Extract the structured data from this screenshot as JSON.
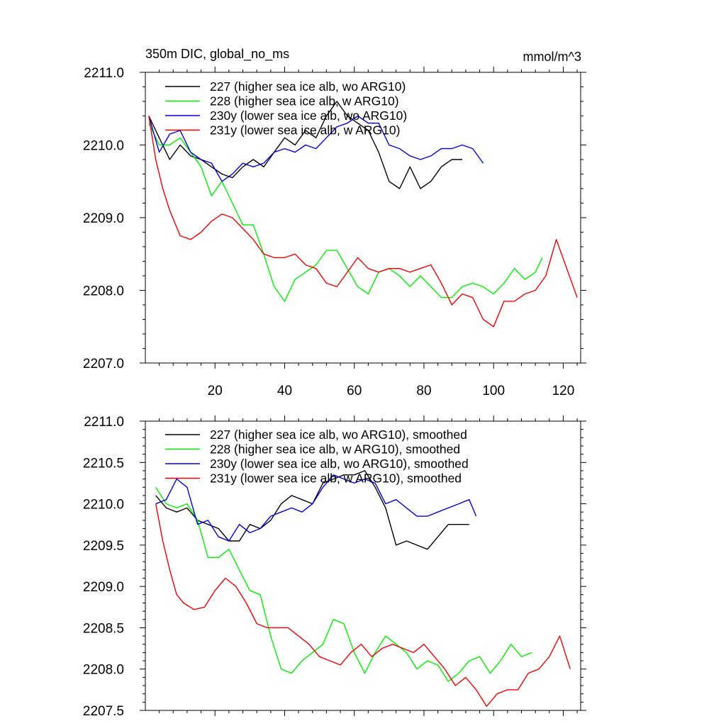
{
  "figure": {
    "title": "350m DIC, global_no_ms",
    "units": "mmol/m^3"
  },
  "chart_data": [
    {
      "type": "line",
      "panel": "top",
      "title": "350m DIC, global_no_ms",
      "units_label": "mmol/m^3",
      "xlabel": "",
      "ylabel": "",
      "xlim": [
        0,
        125
      ],
      "ylim": [
        2207.0,
        2211.0
      ],
      "xticks": [
        20,
        40,
        60,
        80,
        100,
        120
      ],
      "xtick_labels": [
        "20",
        "40",
        "60",
        "80",
        "100",
        "120"
      ],
      "yticks": [
        2207.0,
        2208.0,
        2209.0,
        2210.0,
        2211.0
      ],
      "ytick_labels": [
        "2207.0",
        "2208.0",
        "2209.0",
        "2210.0",
        "2211.0"
      ],
      "grid": false,
      "legend_position": "top-left",
      "series": [
        {
          "name": "227 (higher sea ice alb, wo ARG10)",
          "color": "#000000",
          "x": [
            1,
            4,
            7,
            10,
            13,
            16,
            19,
            22,
            25,
            28,
            31,
            34,
            37,
            40,
            43,
            46,
            49,
            52,
            55,
            58,
            61,
            64,
            67,
            70,
            73,
            76,
            79,
            82,
            85,
            88,
            91
          ],
          "values": [
            2210.4,
            2210.1,
            2209.8,
            2210.0,
            2209.85,
            2209.8,
            2209.7,
            2209.6,
            2209.55,
            2209.7,
            2209.8,
            2209.7,
            2209.9,
            2210.1,
            2210.0,
            2210.2,
            2210.1,
            2210.4,
            2210.6,
            2210.4,
            2210.3,
            2210.2,
            2209.9,
            2209.5,
            2209.4,
            2209.7,
            2209.4,
            2209.5,
            2209.7,
            2209.8,
            2209.8
          ]
        },
        {
          "name": "228 (higher sea ice alb, w ARG10)",
          "color": "#00ee00",
          "x": [
            1,
            4,
            7,
            10,
            13,
            16,
            19,
            22,
            25,
            28,
            31,
            34,
            37,
            40,
            43,
            46,
            49,
            52,
            55,
            58,
            61,
            64,
            67,
            70,
            73,
            76,
            79,
            82,
            85,
            88,
            91,
            94,
            97,
            100,
            103,
            106,
            109,
            112,
            114
          ],
          "values": [
            2210.3,
            2210.0,
            2210.0,
            2210.1,
            2209.9,
            2209.7,
            2209.3,
            2209.5,
            2209.2,
            2208.9,
            2208.9,
            2208.5,
            2208.05,
            2207.85,
            2208.15,
            2208.25,
            2208.35,
            2208.55,
            2208.55,
            2208.3,
            2208.05,
            2207.95,
            2208.25,
            2208.3,
            2208.2,
            2208.05,
            2208.2,
            2208.05,
            2207.9,
            2207.9,
            2208.05,
            2208.1,
            2208.05,
            2207.95,
            2208.1,
            2208.3,
            2208.15,
            2208.25,
            2208.45
          ]
        },
        {
          "name": "230y (lower sea ice alb, wo ARG10)",
          "color": "#0000dd",
          "x": [
            1,
            4,
            7,
            10,
            13,
            16,
            19,
            22,
            25,
            28,
            31,
            34,
            37,
            40,
            43,
            46,
            49,
            52,
            55,
            58,
            61,
            64,
            67,
            70,
            73,
            76,
            79,
            82,
            85,
            88,
            91,
            94,
            97
          ],
          "values": [
            2210.4,
            2209.9,
            2210.15,
            2210.2,
            2209.9,
            2209.8,
            2209.75,
            2209.5,
            2209.6,
            2209.75,
            2209.7,
            2209.75,
            2209.9,
            2209.95,
            2209.9,
            2210.0,
            2209.95,
            2210.1,
            2210.25,
            2210.3,
            2210.4,
            2210.3,
            2210.3,
            2210.0,
            2209.95,
            2209.85,
            2209.8,
            2209.85,
            2209.95,
            2209.95,
            2210.0,
            2209.95,
            2209.75
          ]
        },
        {
          "name": "231y (lower sea ice alb, w ARG10)",
          "color": "#ee0000",
          "x": [
            1,
            3,
            5,
            7,
            10,
            13,
            16,
            19,
            22,
            25,
            28,
            31,
            34,
            37,
            40,
            43,
            46,
            49,
            52,
            55,
            58,
            61,
            64,
            67,
            70,
            73,
            76,
            79,
            82,
            85,
            88,
            91,
            94,
            97,
            100,
            103,
            106,
            109,
            112,
            115,
            118,
            121,
            124
          ],
          "values": [
            2210.4,
            2209.8,
            2209.4,
            2209.1,
            2208.75,
            2208.7,
            2208.8,
            2208.95,
            2209.05,
            2209.0,
            2208.85,
            2208.7,
            2208.5,
            2208.45,
            2208.45,
            2208.5,
            2208.35,
            2208.3,
            2208.1,
            2208.05,
            2208.25,
            2208.45,
            2208.3,
            2208.25,
            2208.3,
            2208.3,
            2208.25,
            2208.3,
            2208.35,
            2208.1,
            2207.8,
            2207.95,
            2207.9,
            2207.6,
            2207.5,
            2207.85,
            2207.85,
            2207.95,
            2208.0,
            2208.2,
            2208.7,
            2208.3,
            2207.9
          ]
        }
      ]
    },
    {
      "type": "line",
      "panel": "bottom",
      "title": "",
      "xlabel": "",
      "ylabel": "",
      "xlim": [
        0,
        125
      ],
      "ylim": [
        2207.5,
        2211.0
      ],
      "xticks": [
        20,
        40,
        60,
        80,
        100,
        120
      ],
      "xtick_labels": [],
      "yticks": [
        2207.5,
        2208.0,
        2208.5,
        2209.0,
        2209.5,
        2210.0,
        2210.5,
        2211.0
      ],
      "ytick_labels": [
        "2207.5",
        "2208.0",
        "2208.5",
        "2209.0",
        "2209.5",
        "2210.0",
        "2210.5",
        "2211.0"
      ],
      "grid": false,
      "legend_position": "top-left",
      "series": [
        {
          "name": "227 (higher sea ice alb, wo ARG10), smoothed",
          "color": "#000000",
          "x": [
            3,
            6,
            9,
            12,
            15,
            18,
            21,
            24,
            27,
            30,
            33,
            36,
            39,
            42,
            45,
            48,
            51,
            54,
            57,
            60,
            63,
            66,
            69,
            72,
            75,
            78,
            81,
            84,
            87,
            90,
            93
          ],
          "values": [
            2210.1,
            2209.95,
            2209.9,
            2209.95,
            2209.8,
            2209.75,
            2209.7,
            2209.55,
            2209.55,
            2209.75,
            2209.7,
            2209.8,
            2210.0,
            2210.1,
            2210.05,
            2210.0,
            2210.25,
            2210.3,
            2210.35,
            2210.35,
            2210.4,
            2210.2,
            2209.95,
            2209.5,
            2209.55,
            2209.5,
            2209.45,
            2209.6,
            2209.75,
            2209.75,
            2209.75
          ]
        },
        {
          "name": "228 (higher sea ice alb, w ARG10), smoothed",
          "color": "#00ee00",
          "x": [
            3,
            6,
            9,
            12,
            15,
            18,
            21,
            24,
            27,
            30,
            33,
            36,
            39,
            42,
            45,
            48,
            51,
            54,
            57,
            60,
            63,
            66,
            69,
            72,
            75,
            78,
            81,
            84,
            87,
            90,
            93,
            96,
            99,
            102,
            105,
            108,
            111
          ],
          "values": [
            2210.2,
            2210.0,
            2209.95,
            2210.0,
            2209.8,
            2209.35,
            2209.35,
            2209.45,
            2209.2,
            2208.95,
            2208.9,
            2208.4,
            2208.0,
            2207.95,
            2208.1,
            2208.2,
            2208.3,
            2208.6,
            2208.55,
            2208.2,
            2207.95,
            2208.2,
            2208.4,
            2208.3,
            2208.2,
            2208.0,
            2208.1,
            2208.05,
            2207.85,
            2207.95,
            2208.1,
            2208.15,
            2207.95,
            2208.1,
            2208.3,
            2208.15,
            2208.2
          ]
        },
        {
          "name": "230y (lower sea ice alb, wo ARG10), smoothed",
          "color": "#0000dd",
          "x": [
            3,
            6,
            9,
            12,
            15,
            18,
            21,
            24,
            27,
            30,
            33,
            36,
            39,
            42,
            45,
            48,
            51,
            54,
            57,
            60,
            63,
            66,
            69,
            72,
            75,
            78,
            81,
            84,
            87,
            90,
            93,
            95
          ],
          "values": [
            2210.0,
            2210.05,
            2210.3,
            2210.2,
            2209.75,
            2209.8,
            2209.6,
            2209.55,
            2209.75,
            2209.65,
            2209.7,
            2209.85,
            2209.9,
            2209.95,
            2209.9,
            2210.0,
            2210.2,
            2210.35,
            2210.3,
            2210.25,
            2210.3,
            2210.25,
            2210.0,
            2210.05,
            2209.95,
            2209.85,
            2209.85,
            2209.9,
            2209.95,
            2210.0,
            2210.05,
            2209.85
          ]
        },
        {
          "name": "231y (lower sea ice alb, w ARG10), smoothed",
          "color": "#ee0000",
          "x": [
            3,
            5,
            7,
            9,
            11,
            14,
            17,
            20,
            23,
            26,
            29,
            32,
            35,
            38,
            41,
            44,
            47,
            50,
            53,
            56,
            59,
            62,
            65,
            68,
            71,
            74,
            77,
            80,
            83,
            86,
            89,
            92,
            95,
            98,
            101,
            104,
            107,
            110,
            113,
            116,
            119,
            122
          ],
          "values": [
            2210.0,
            2209.55,
            2209.2,
            2208.9,
            2208.8,
            2208.72,
            2208.75,
            2208.95,
            2209.1,
            2209.0,
            2208.8,
            2208.55,
            2208.5,
            2208.5,
            2208.5,
            2208.4,
            2208.3,
            2208.15,
            2208.1,
            2208.05,
            2208.2,
            2208.3,
            2208.15,
            2208.25,
            2208.3,
            2208.25,
            2208.2,
            2208.3,
            2208.15,
            2208.0,
            2207.8,
            2207.9,
            2207.75,
            2207.55,
            2207.7,
            2207.75,
            2207.75,
            2207.95,
            2208.0,
            2208.15,
            2208.4,
            2208.0
          ]
        }
      ]
    }
  ]
}
